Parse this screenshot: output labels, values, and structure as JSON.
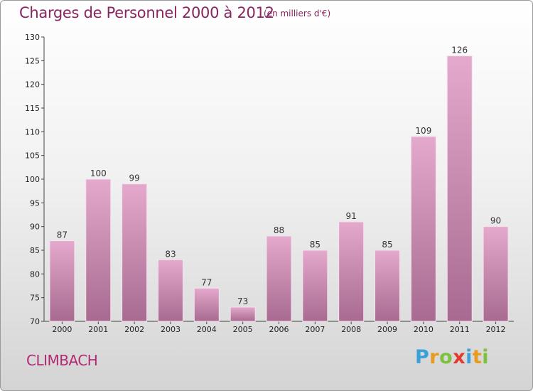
{
  "header": {
    "title": "Charges de Personnel 2000 à 2012",
    "subtitle": "(en milliers d'€)"
  },
  "footer": {
    "city": "CLIMBACH",
    "logo_letters": [
      "P",
      "r",
      "o",
      "x",
      "i",
      "t",
      "i"
    ],
    "logo_colors": [
      "#3aa0d8",
      "#e89a1c",
      "#7cc240",
      "#e23a2c",
      "#3aa0d8",
      "#e89a1c",
      "#7cc240"
    ]
  },
  "colors": {
    "bar_top": "#e4a9cd",
    "bar_bottom": "#a86a90",
    "title": "#8a2560"
  },
  "chart_data": {
    "type": "bar",
    "title": "Charges de Personnel 2000 à 2012",
    "subtitle": "(en milliers d'€)",
    "categories": [
      "2000",
      "2001",
      "2002",
      "2003",
      "2004",
      "2005",
      "2006",
      "2007",
      "2008",
      "2009",
      "2010",
      "2011",
      "2012"
    ],
    "values": [
      87,
      100,
      99,
      83,
      77,
      73,
      88,
      85,
      91,
      85,
      109,
      126,
      90
    ],
    "ylim": [
      70,
      130
    ],
    "yticks": [
      70,
      75,
      80,
      85,
      90,
      95,
      100,
      105,
      110,
      115,
      120,
      125,
      130
    ],
    "grid": false
  }
}
